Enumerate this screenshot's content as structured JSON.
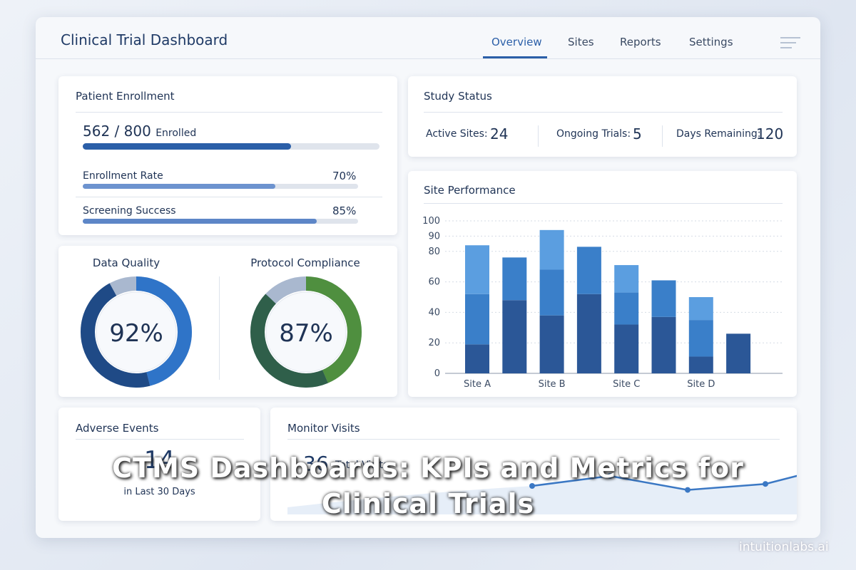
{
  "header": {
    "title": "Clinical Trial Dashboard",
    "nav": [
      "Overview",
      "Sites",
      "Reports",
      "Settings"
    ],
    "active": 0
  },
  "enrollment": {
    "title": "Patient Enrollment",
    "enrolled": 562,
    "target": 800,
    "separator": "/",
    "unit": "Enrolled",
    "metrics": [
      {
        "label": "Enrollment Rate",
        "value": 70,
        "value_label": "70%"
      },
      {
        "label": "Screening Success",
        "value": 85,
        "value_label": "85%"
      }
    ]
  },
  "gauges": [
    {
      "title": "Data Quality",
      "value": 92,
      "value_label": "92%"
    },
    {
      "title": "Protocol Compliance",
      "value": 87,
      "value_label": "87%"
    }
  ],
  "study_status": {
    "title": "Study Status",
    "items": [
      {
        "label": "Active Sites:",
        "value": 24
      },
      {
        "label": "Ongoing Trials:",
        "value": 5
      },
      {
        "label": "Days Remaining:",
        "value": 120
      }
    ]
  },
  "site_performance": {
    "title": "Site Performance",
    "chart_data": {
      "type": "bar",
      "stacked": true,
      "categories": [
        "Site A",
        null,
        "Site B",
        null,
        "Site C",
        null,
        "Site D",
        null
      ],
      "series": [
        {
          "color": "#2b5797",
          "values": [
            19,
            48,
            38,
            52,
            32,
            37,
            11,
            26
          ]
        },
        {
          "color": "#3a7fc9",
          "values": [
            33,
            28,
            30,
            31,
            21,
            24,
            24,
            null
          ]
        },
        {
          "color": "#5b9ee0",
          "values": [
            32,
            null,
            26,
            null,
            18,
            null,
            15,
            null
          ]
        }
      ],
      "ylim": [
        0,
        100
      ],
      "yticks": [
        0,
        20,
        40,
        60,
        80,
        90,
        100
      ],
      "grid": true
    }
  },
  "adverse_events": {
    "title": "Adverse Events",
    "value": 14,
    "caption": "in Last 30 Days"
  },
  "monitor_visits": {
    "title": "Monitor Visits",
    "value": 36,
    "caption": "Total Visits",
    "trend": [
      15,
      20,
      13,
      16,
      26,
      24,
      37
    ]
  },
  "overlay": {
    "caption": "CTMS Dashboards: KPIs and Metrics for Clinical Trials",
    "watermark": "intuitionlabs.ai"
  }
}
